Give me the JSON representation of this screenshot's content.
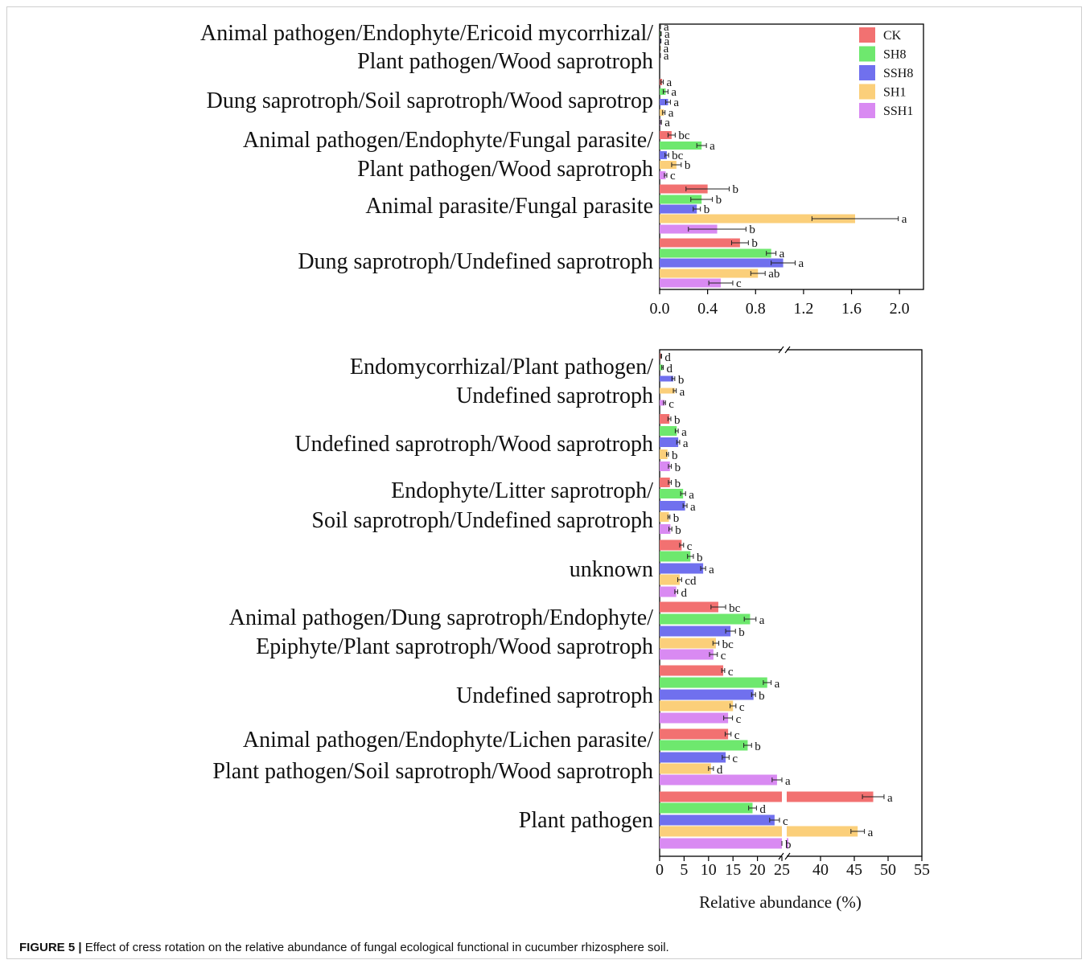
{
  "caption": {
    "label": "FIGURE 5 |",
    "text": "Effect of cress rotation on the relative abundance of fungal ecological functional in cucumber rhizosphere soil."
  },
  "chart_data": [
    {
      "type": "bar",
      "orientation": "horizontal",
      "xlabel": "",
      "xlim": [
        0,
        2.2
      ],
      "xticks": [
        "0.0",
        "0.4",
        "0.8",
        "1.2",
        "1.6",
        "2.0"
      ],
      "legend": {
        "placement": "top-right",
        "entries": [
          "CK",
          "SH8",
          "SSH8",
          "SH1",
          "SSH1"
        ]
      },
      "colors": {
        "CK": "#f27171",
        "SH8": "#6ee86e",
        "SSH8": "#7070ee",
        "SH1": "#fbcf7a",
        "SSH1": "#d98af2"
      },
      "categories": [
        {
          "lines": [
            "Animal pathogen/Endophyte/Ericoid mycorrhizal/",
            "Plant pathogen/Wood saprotroph"
          ],
          "values": [
            0.005,
            0.01,
            0.008,
            0.003,
            0.004
          ],
          "errors": [
            0.002,
            0.003,
            0.003,
            0.001,
            0.002
          ],
          "letters": [
            "a",
            "a",
            "a",
            "a",
            "a"
          ]
        },
        {
          "lines": [
            "Dung saprotroph/Soil saprotroph/Wood saprotrop"
          ],
          "values": [
            0.02,
            0.05,
            0.07,
            0.035,
            0.01
          ],
          "errors": [
            0.01,
            0.02,
            0.02,
            0.01,
            0.005
          ],
          "letters": [
            "a",
            "a",
            "a",
            "a",
            "a"
          ]
        },
        {
          "lines": [
            "Animal pathogen/Endophyte/Fungal parasite/",
            "Plant pathogen/Wood saprotroph"
          ],
          "values": [
            0.1,
            0.35,
            0.06,
            0.14,
            0.05
          ],
          "errors": [
            0.03,
            0.04,
            0.015,
            0.04,
            0.01
          ],
          "letters": [
            "bc",
            "a",
            "bc",
            "b",
            "c"
          ]
        },
        {
          "lines": [
            "Animal parasite/Fungal parasite"
          ],
          "values": [
            0.4,
            0.35,
            0.31,
            1.63,
            0.48
          ],
          "errors": [
            0.18,
            0.09,
            0.03,
            0.36,
            0.24
          ],
          "letters": [
            "b",
            "b",
            "b",
            "a",
            "b"
          ]
        },
        {
          "lines": [
            "Dung saprotroph/Undefined saprotroph"
          ],
          "values": [
            0.67,
            0.93,
            1.03,
            0.82,
            0.51
          ],
          "errors": [
            0.07,
            0.04,
            0.1,
            0.06,
            0.1
          ],
          "letters": [
            "b",
            "a",
            "a",
            "ab",
            "c"
          ]
        }
      ]
    },
    {
      "type": "bar",
      "orientation": "horizontal",
      "xlabel": "Relative abundance (%)",
      "xlim": [
        0,
        55
      ],
      "axis_break": [
        25,
        35
      ],
      "xticks": [
        "0",
        "5",
        "10",
        "15",
        "20",
        "25",
        "40",
        "45",
        "50",
        "55"
      ],
      "categories": [
        {
          "lines": [
            "Endomycorrhizal/Plant pathogen/",
            "Undefined saprotroph"
          ],
          "values": [
            0.3,
            0.6,
            2.8,
            3.1,
            1.0
          ],
          "errors": [
            0.1,
            0.15,
            0.3,
            0.3,
            0.2
          ],
          "letters": [
            "d",
            "d",
            "b",
            "a",
            "c"
          ]
        },
        {
          "lines": [
            "Undefined saprotroph/Wood saprotroph"
          ],
          "values": [
            2.0,
            3.5,
            3.8,
            1.6,
            2.1
          ],
          "errors": [
            0.3,
            0.3,
            0.3,
            0.2,
            0.3
          ],
          "letters": [
            "b",
            "a",
            "a",
            "b",
            "b"
          ]
        },
        {
          "lines": [
            "Endophyte/Litter saprotroph/",
            "Soil saprotroph/Undefined saprotroph"
          ],
          "values": [
            2.1,
            4.8,
            5.2,
            1.9,
            2.2
          ],
          "errors": [
            0.3,
            0.5,
            0.4,
            0.2,
            0.3
          ],
          "letters": [
            "b",
            "a",
            "a",
            "b",
            "b"
          ]
        },
        {
          "lines": [
            "unknown"
          ],
          "values": [
            4.5,
            6.3,
            8.9,
            4.1,
            3.4
          ],
          "errors": [
            0.4,
            0.6,
            0.5,
            0.4,
            0.3
          ],
          "letters": [
            "c",
            "b",
            "a",
            "cd",
            "d"
          ]
        },
        {
          "lines": [
            "Animal pathogen/Dung saprotroph/Endophyte/",
            "Epiphyte/Plant saprotroph/Wood saprotroph"
          ],
          "values": [
            12.0,
            18.5,
            14.5,
            11.5,
            11.0
          ],
          "errors": [
            1.5,
            1.2,
            1.0,
            0.6,
            0.8
          ],
          "letters": [
            "bc",
            "a",
            "b",
            "bc",
            "c"
          ]
        },
        {
          "lines": [
            "Undefined saprotroph"
          ],
          "values": [
            13.0,
            22.0,
            19.2,
            15.0,
            14.0
          ],
          "errors": [
            0.3,
            0.8,
            0.4,
            0.6,
            0.9
          ],
          "letters": [
            "c",
            "a",
            "b",
            "c",
            "c"
          ]
        },
        {
          "lines": [
            "Animal pathogen/Endophyte/Lichen parasite/",
            "Plant pathogen/Soil saprotroph/Wood saprotroph"
          ],
          "values": [
            14.0,
            18.0,
            13.5,
            10.5,
            24.0
          ],
          "errors": [
            0.6,
            0.8,
            0.7,
            0.5,
            1.0
          ],
          "letters": [
            "c",
            "b",
            "c",
            "d",
            "a"
          ]
        },
        {
          "lines": [
            "Plant pathogen"
          ],
          "values": [
            47.8,
            19.0,
            23.5,
            45.5,
            26.8
          ],
          "errors": [
            1.6,
            0.8,
            1.0,
            1.0,
            1.5
          ],
          "letters": [
            "a",
            "d",
            "c",
            "a",
            "b"
          ]
        }
      ]
    }
  ]
}
